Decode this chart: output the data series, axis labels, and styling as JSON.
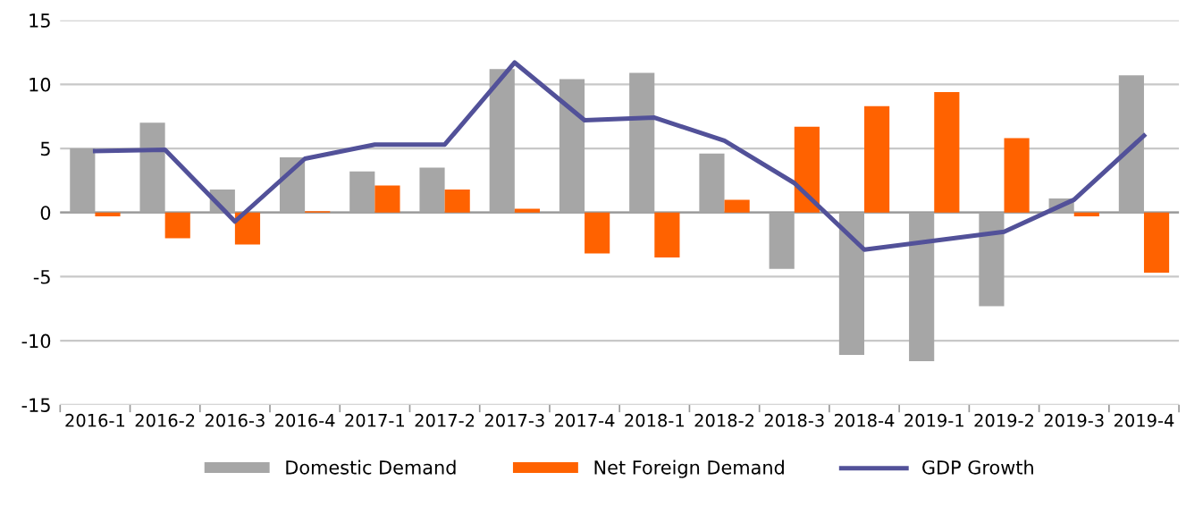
{
  "chart_data": {
    "type": "bar",
    "categories": [
      "2016-1",
      "2016-2",
      "2016-3",
      "2016-4",
      "2017-1",
      "2017-2",
      "2017-3",
      "2017-4",
      "2018-1",
      "2018-2",
      "2018-3",
      "2018-4",
      "2019-1",
      "2019-2",
      "2019-3",
      "2019-4"
    ],
    "series": [
      {
        "name": "Domestic Demand",
        "color": "#a6a6a6",
        "values": [
          5.0,
          7.0,
          1.8,
          4.3,
          3.2,
          3.5,
          11.2,
          10.4,
          10.9,
          4.6,
          -4.4,
          -11.1,
          -11.6,
          -7.3,
          1.1,
          10.7
        ]
      },
      {
        "name": "Net Foreign Demand",
        "color": "#ff6200",
        "values": [
          -0.3,
          -2.0,
          -2.5,
          0.1,
          2.1,
          1.8,
          0.3,
          -3.2,
          -3.5,
          1.0,
          6.7,
          8.3,
          9.4,
          5.8,
          -0.3,
          -4.7
        ]
      },
      {
        "name": "GDP Growth",
        "type": "line",
        "color": "#525199",
        "values": [
          4.8,
          4.9,
          -0.7,
          4.2,
          5.3,
          5.3,
          11.7,
          7.2,
          7.4,
          5.6,
          2.3,
          -2.9,
          -2.2,
          -1.5,
          1.0,
          6.0
        ]
      }
    ],
    "ylim": [
      -15,
      15
    ],
    "yticks": [
      -15,
      -10,
      -5,
      0,
      5,
      10,
      15
    ],
    "grid": "y",
    "legend": "bottom",
    "marker": "none",
    "line_style": "solid"
  }
}
